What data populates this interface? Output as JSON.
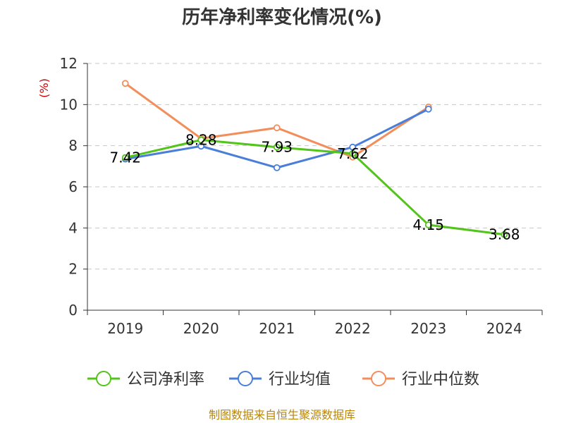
{
  "chart_data": {
    "type": "line",
    "title": "历年净利率变化情况(%)",
    "ylabel": "(%)",
    "xlabel": "",
    "categories": [
      "2019",
      "2020",
      "2021",
      "2022",
      "2023",
      "2024"
    ],
    "ylim": [
      0,
      12
    ],
    "yticks": [
      0,
      2,
      4,
      6,
      8,
      10,
      12
    ],
    "grid": true,
    "legend_position": "bottom",
    "series": [
      {
        "name": "公司净利率",
        "color": "#52c41a",
        "values": [
          7.42,
          8.28,
          7.93,
          7.62,
          4.15,
          3.68
        ],
        "labels": [
          "7.42",
          "8.28",
          "7.93",
          "7.62",
          "4.15",
          "3.68"
        ]
      },
      {
        "name": "行业均值",
        "color": "#4a7fd9",
        "values": [
          7.35,
          7.98,
          6.93,
          7.93,
          9.78,
          null
        ]
      },
      {
        "name": "行业中位数",
        "color": "#f28e5c",
        "values": [
          11.03,
          8.35,
          8.87,
          7.45,
          9.88,
          null
        ]
      }
    ],
    "source": "制图数据来自恒生聚源数据库"
  }
}
